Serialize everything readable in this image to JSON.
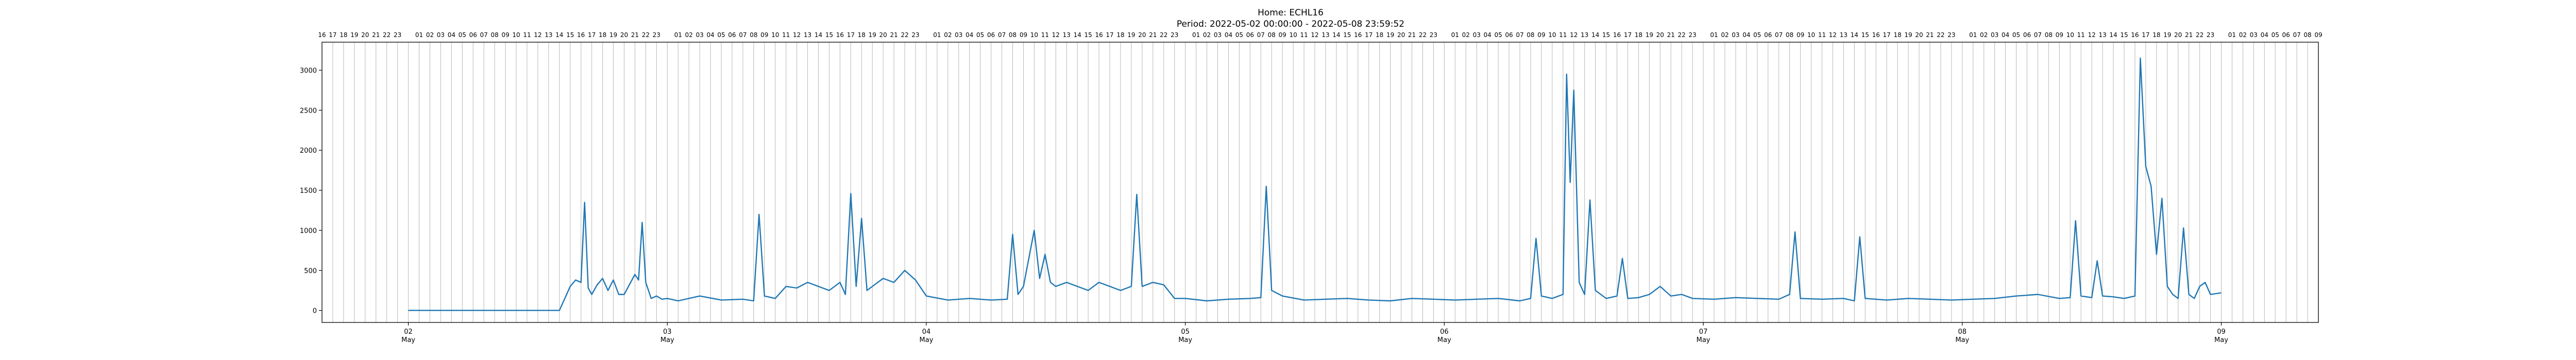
{
  "chart_data": {
    "type": "line",
    "title": "Home: ECHL16",
    "subtitle": "Period: 2022-05-02 00:00:00 - 2022-05-08 23:59:52",
    "xlabel": "",
    "ylabel": "",
    "x_start": "2022-05-01T16:00",
    "x_end": "2022-05-09T09:00",
    "ylim": [
      -150,
      3350
    ],
    "yticks": [
      0,
      500,
      1000,
      1500,
      2000,
      2500,
      3000
    ],
    "xticks": [
      {
        "day": "02",
        "month": "May"
      },
      {
        "day": "03",
        "month": "May"
      },
      {
        "day": "04",
        "month": "May"
      },
      {
        "day": "05",
        "month": "May"
      },
      {
        "day": "06",
        "month": "May"
      },
      {
        "day": "07",
        "month": "May"
      },
      {
        "day": "08",
        "month": "May"
      },
      {
        "day": "09",
        "month": "May"
      }
    ],
    "grid": "vertical hourly lines",
    "legend": "none",
    "line_color": "#1f77b4",
    "series": [
      {
        "x": [
          "2022-05-02T00:00",
          "2022-05-02T14:00",
          "2022-05-02T15:00",
          "2022-05-02T15:30",
          "2022-05-02T16:00",
          "2022-05-02T16:20",
          "2022-05-02T16:40",
          "2022-05-02T17:00",
          "2022-05-02T17:30",
          "2022-05-02T18:00",
          "2022-05-02T18:30",
          "2022-05-02T19:00",
          "2022-05-02T19:30",
          "2022-05-02T20:00",
          "2022-05-02T21:00",
          "2022-05-02T21:20",
          "2022-05-02T21:40",
          "2022-05-02T22:00",
          "2022-05-02T22:30",
          "2022-05-02T23:00",
          "2022-05-02T23:30",
          "2022-05-03T00:00",
          "2022-05-03T01:00",
          "2022-05-03T03:00",
          "2022-05-03T05:00",
          "2022-05-03T07:00",
          "2022-05-03T08:00",
          "2022-05-03T08:30",
          "2022-05-03T09:00",
          "2022-05-03T10:00",
          "2022-05-03T11:00",
          "2022-05-03T12:00",
          "2022-05-03T13:00",
          "2022-05-03T14:00",
          "2022-05-03T15:00",
          "2022-05-03T16:00",
          "2022-05-03T16:30",
          "2022-05-03T17:00",
          "2022-05-03T17:30",
          "2022-05-03T18:00",
          "2022-05-03T18:30",
          "2022-05-03T19:00",
          "2022-05-03T20:00",
          "2022-05-03T21:00",
          "2022-05-03T22:00",
          "2022-05-03T23:00",
          "2022-05-04T00:00",
          "2022-05-04T02:00",
          "2022-05-04T04:00",
          "2022-05-04T06:00",
          "2022-05-04T07:30",
          "2022-05-04T08:00",
          "2022-05-04T08:30",
          "2022-05-04T09:00",
          "2022-05-04T10:00",
          "2022-05-04T10:30",
          "2022-05-04T11:00",
          "2022-05-04T11:30",
          "2022-05-04T12:00",
          "2022-05-04T13:00",
          "2022-05-04T14:00",
          "2022-05-04T15:00",
          "2022-05-04T16:00",
          "2022-05-04T17:00",
          "2022-05-04T18:00",
          "2022-05-04T19:00",
          "2022-05-04T19:30",
          "2022-05-04T20:00",
          "2022-05-04T21:00",
          "2022-05-04T22:00",
          "2022-05-04T23:00",
          "2022-05-05T00:00",
          "2022-05-05T02:00",
          "2022-05-05T04:00",
          "2022-05-05T06:00",
          "2022-05-05T07:00",
          "2022-05-05T07:30",
          "2022-05-05T08:00",
          "2022-05-05T09:00",
          "2022-05-05T11:00",
          "2022-05-05T13:00",
          "2022-05-05T15:00",
          "2022-05-05T17:00",
          "2022-05-05T19:00",
          "2022-05-05T21:00",
          "2022-05-05T23:00",
          "2022-05-06T01:00",
          "2022-05-06T03:00",
          "2022-05-06T05:00",
          "2022-05-06T07:00",
          "2022-05-06T08:00",
          "2022-05-06T08:30",
          "2022-05-06T09:00",
          "2022-05-06T10:00",
          "2022-05-06T11:00",
          "2022-05-06T11:20",
          "2022-05-06T11:40",
          "2022-05-06T12:00",
          "2022-05-06T12:30",
          "2022-05-06T13:00",
          "2022-05-06T13:30",
          "2022-05-06T14:00",
          "2022-05-06T15:00",
          "2022-05-06T16:00",
          "2022-05-06T16:30",
          "2022-05-06T17:00",
          "2022-05-06T18:00",
          "2022-05-06T19:00",
          "2022-05-06T20:00",
          "2022-05-06T21:00",
          "2022-05-06T22:00",
          "2022-05-06T23:00",
          "2022-05-07T01:00",
          "2022-05-07T03:00",
          "2022-05-07T05:00",
          "2022-05-07T07:00",
          "2022-05-07T08:00",
          "2022-05-07T08:30",
          "2022-05-07T09:00",
          "2022-05-07T11:00",
          "2022-05-07T13:00",
          "2022-05-07T14:00",
          "2022-05-07T14:30",
          "2022-05-07T15:00",
          "2022-05-07T17:00",
          "2022-05-07T19:00",
          "2022-05-07T21:00",
          "2022-05-07T23:00",
          "2022-05-08T01:00",
          "2022-05-08T03:00",
          "2022-05-08T05:00",
          "2022-05-08T07:00",
          "2022-05-08T09:00",
          "2022-05-08T10:00",
          "2022-05-08T10:30",
          "2022-05-08T11:00",
          "2022-05-08T12:00",
          "2022-05-08T12:30",
          "2022-05-08T13:00",
          "2022-05-08T14:00",
          "2022-05-08T15:00",
          "2022-05-08T16:00",
          "2022-05-08T16:30",
          "2022-05-08T17:00",
          "2022-05-08T17:30",
          "2022-05-08T18:00",
          "2022-05-08T18:30",
          "2022-05-08T19:00",
          "2022-05-08T19:30",
          "2022-05-08T20:00",
          "2022-05-08T20:30",
          "2022-05-08T21:00",
          "2022-05-08T21:30",
          "2022-05-08T22:00",
          "2022-05-08T22:30",
          "2022-05-08T23:00",
          "2022-05-08T23:59"
        ],
        "y": [
          0,
          0,
          300,
          380,
          350,
          1350,
          280,
          200,
          320,
          400,
          250,
          380,
          200,
          200,
          450,
          380,
          1100,
          350,
          150,
          180,
          140,
          150,
          120,
          180,
          130,
          140,
          120,
          1200,
          180,
          150,
          300,
          280,
          350,
          300,
          250,
          350,
          200,
          1460,
          300,
          1150,
          250,
          300,
          400,
          350,
          500,
          380,
          180,
          130,
          150,
          130,
          140,
          950,
          200,
          300,
          1000,
          400,
          700,
          350,
          300,
          350,
          300,
          250,
          350,
          300,
          250,
          300,
          1450,
          300,
          350,
          320,
          150,
          150,
          120,
          140,
          150,
          160,
          1550,
          250,
          180,
          130,
          140,
          150,
          130,
          120,
          150,
          140,
          130,
          140,
          150,
          120,
          150,
          900,
          180,
          150,
          200,
          2950,
          1600,
          2750,
          350,
          200,
          1380,
          250,
          150,
          180,
          650,
          150,
          160,
          200,
          300,
          180,
          200,
          150,
          140,
          160,
          150,
          140,
          200,
          980,
          150,
          140,
          150,
          120,
          920,
          150,
          130,
          150,
          140,
          130,
          140,
          150,
          180,
          200,
          150,
          160,
          1120,
          180,
          160,
          620,
          180,
          170,
          150,
          180,
          3150,
          1800,
          1550,
          700,
          1400,
          300,
          200,
          150,
          1030,
          200,
          150,
          300,
          350,
          200,
          220
        ]
      }
    ]
  }
}
